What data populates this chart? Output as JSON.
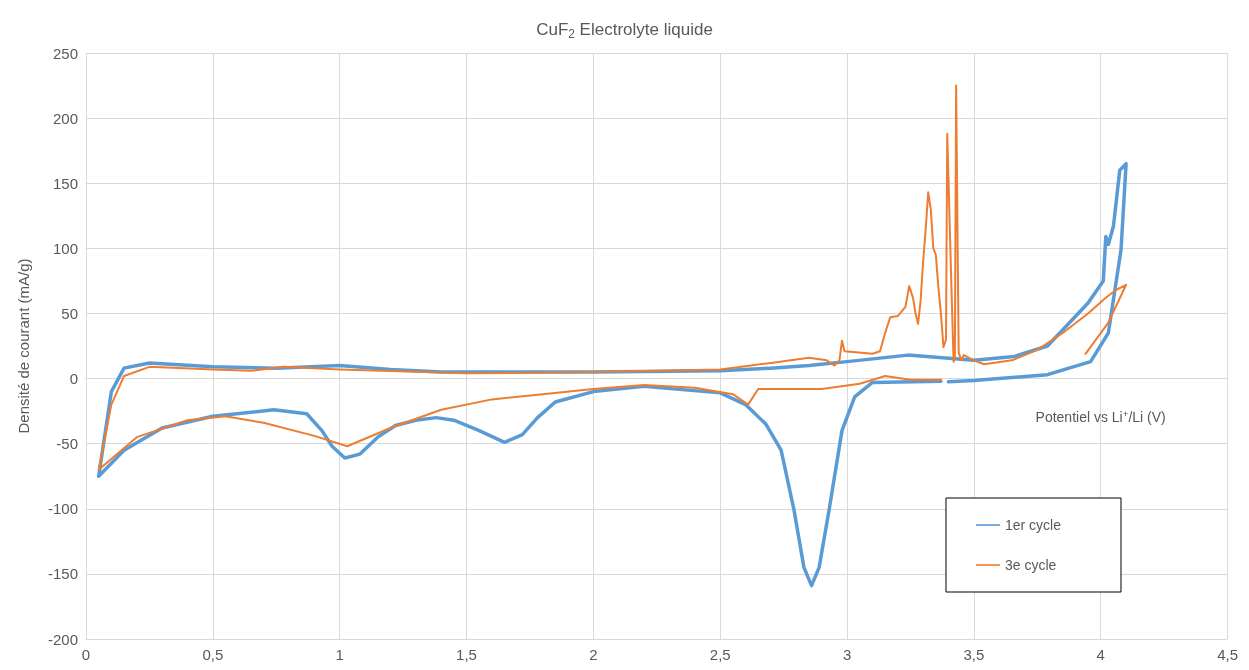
{
  "chart_data": {
    "type": "line",
    "title": "CuF$_{2}$ Electrolyte liquide",
    "xlabel": "Potentiel vs Li$^{+}$/Li (V)",
    "ylabel": "Densité de courant (mA/g)",
    "xlim": [
      0,
      4.5
    ],
    "xticks": [
      0,
      {
        "value": 0.5,
        "label": "0,5"
      },
      1,
      {
        "value": 1.5,
        "label": "1,5"
      },
      2,
      {
        "value": 2.5,
        "label": "2,5"
      },
      3,
      {
        "value": 3.5,
        "label": "3,5"
      },
      4,
      {
        "value": 4.5,
        "label": "4,5"
      }
    ],
    "ylim": [
      -200,
      250
    ],
    "yticks": [
      -200,
      -150,
      -100,
      -50,
      0,
      50,
      100,
      150,
      200,
      250
    ],
    "grid": true,
    "legend": "bottom right",
    "marker": "none",
    "line_style": "solid",
    "series": [
      {
        "name": "1er cycle",
        "color": "#5b9bd5",
        "x": [
          3.37,
          3.1,
          3.03,
          2.98,
          2.93,
          2.89,
          2.86,
          2.83,
          2.79,
          2.74,
          2.68,
          2.6,
          2.5,
          2.2,
          2.0,
          1.85,
          1.78,
          1.72,
          1.65,
          1.55,
          1.45,
          1.38,
          1.3,
          1.22,
          1.15,
          1.08,
          1.02,
          0.97,
          0.93,
          0.87,
          0.74,
          0.5,
          0.3,
          0.15,
          0.05,
          0.1,
          0.15,
          0.25,
          0.5,
          0.75,
          1.0,
          1.2,
          1.4,
          2.0,
          2.5,
          2.7,
          2.85,
          3.0,
          3.24,
          3.5,
          3.66,
          3.79,
          3.95,
          4.01,
          4.02,
          4.03,
          4.05,
          4.075,
          4.1,
          4.08,
          4.03,
          3.96,
          3.79,
          3.5,
          3.4
        ],
        "values": [
          -2,
          -3,
          -14,
          -40,
          -100,
          -145,
          -159,
          -145,
          -100,
          -55,
          -35,
          -20,
          -11,
          -6,
          -10,
          -18,
          -30,
          -43,
          -49,
          -40,
          -32,
          -30,
          -32,
          -36,
          -45,
          -58,
          -61,
          -52,
          -40,
          -27,
          -24,
          -29,
          -38,
          -55,
          -75,
          -10,
          8,
          12,
          9,
          8,
          10,
          7,
          5,
          5,
          6,
          8,
          10,
          13,
          18,
          14,
          17,
          25,
          58,
          75,
          109,
          103,
          117,
          160,
          165,
          99,
          35,
          13,
          3,
          -1.5,
          -2.5
        ]
      },
      {
        "name": "3e cycle",
        "color": "#ed7d31",
        "x": [
          3.37,
          3.25,
          3.15,
          3.05,
          2.9,
          2.8,
          2.65,
          2.61,
          2.55,
          2.4,
          2.2,
          2.0,
          1.8,
          1.6,
          1.4,
          1.2,
          1.03,
          0.9,
          0.7,
          0.55,
          0.4,
          0.2,
          0.05,
          0.1,
          0.15,
          0.25,
          0.5,
          0.65,
          0.78,
          1.0,
          1.5,
          2.0,
          2.5,
          2.7,
          2.85,
          2.92,
          2.95,
          2.97,
          2.98,
          2.99,
          3.1,
          3.13,
          3.15,
          3.17,
          3.2,
          3.23,
          3.245,
          3.26,
          3.27,
          3.28,
          3.29,
          3.3,
          3.31,
          3.32,
          3.33,
          3.34,
          3.35,
          3.36,
          3.37,
          3.38,
          3.39,
          3.395,
          3.41,
          3.42,
          3.425,
          3.43,
          3.44,
          3.45,
          3.46,
          3.5,
          3.54,
          3.65,
          3.75,
          3.85,
          3.95,
          4.02,
          4.06,
          4.1,
          4.03,
          3.94
        ],
        "values": [
          -1,
          -1,
          2,
          -4,
          -8,
          -8,
          -8,
          -20,
          -12,
          -7,
          -5,
          -8,
          -12,
          -16,
          -24,
          -38,
          -52,
          -44,
          -34,
          -29,
          -32,
          -45,
          -70,
          -20,
          2,
          9,
          7,
          6,
          9,
          7,
          4,
          5,
          7,
          12,
          16,
          14,
          10,
          14,
          29,
          21,
          19,
          21,
          35,
          47,
          48,
          55,
          71,
          62,
          50,
          42,
          60,
          90,
          115,
          143,
          130,
          100,
          95,
          70,
          50,
          24,
          30,
          188,
          80,
          13,
          15,
          225,
          20,
          14,
          18,
          14,
          11,
          14,
          22,
          35,
          50,
          62,
          68,
          72,
          43,
          19
        ]
      }
    ]
  }
}
